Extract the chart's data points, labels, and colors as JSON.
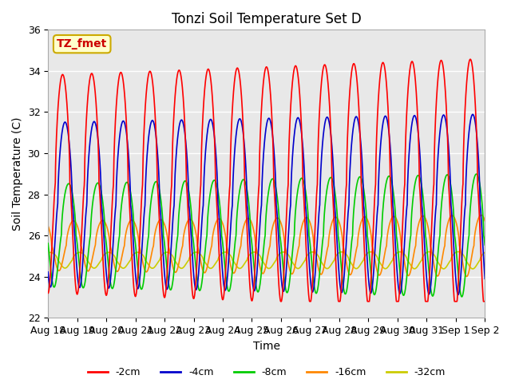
{
  "title": "Tonzi Soil Temperature Set D",
  "xlabel": "Time",
  "ylabel": "Soil Temperature (C)",
  "ylim": [
    22,
    36
  ],
  "fig_bg_color": "#ffffff",
  "plot_bg_color": "#e8e8e8",
  "grid_color": "#ffffff",
  "annotation_text": "TZ_fmet",
  "annotation_bg": "#ffffcc",
  "annotation_border": "#ccaa00",
  "annotation_text_color": "#cc0000",
  "legend_labels": [
    "-2cm",
    "-4cm",
    "-8cm",
    "-16cm",
    "-32cm"
  ],
  "legend_colors": [
    "#ff0000",
    "#0000cc",
    "#00cc00",
    "#ff8800",
    "#cccc00"
  ],
  "xtick_labels": [
    "Aug 18",
    "Aug 19",
    "Aug 20",
    "Aug 21",
    "Aug 22",
    "Aug 23",
    "Aug 24",
    "Aug 25",
    "Aug 26",
    "Aug 27",
    "Aug 28",
    "Aug 29",
    "Aug 30",
    "Aug 31",
    "Sep 1",
    "Sep 2"
  ]
}
